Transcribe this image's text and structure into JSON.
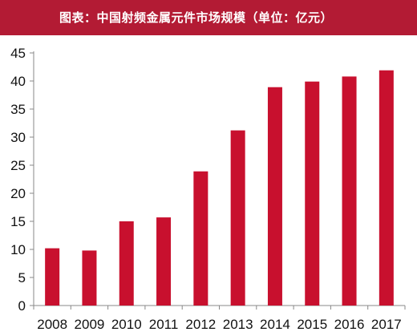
{
  "header": {
    "title": "图表：中国射频金属元件市场规模（单位：亿元）"
  },
  "chart_data": {
    "type": "bar",
    "title": "图表：中国射频金属元件市场规模（单位：亿元）",
    "xlabel": "",
    "ylabel": "",
    "categories": [
      "2008",
      "2009",
      "2010",
      "2011",
      "2012",
      "2013",
      "2014",
      "2015",
      "2016",
      "2017"
    ],
    "values": [
      10.2,
      9.8,
      15.0,
      15.7,
      23.9,
      31.2,
      38.9,
      39.9,
      40.8,
      41.9
    ],
    "ylim": [
      0,
      45
    ],
    "yticks": [
      0,
      5,
      10,
      15,
      20,
      25,
      30,
      35,
      40,
      45
    ],
    "grid": false,
    "legend": "none",
    "bar_color": "#c8102e",
    "title_bar_color": "#b31b34"
  }
}
